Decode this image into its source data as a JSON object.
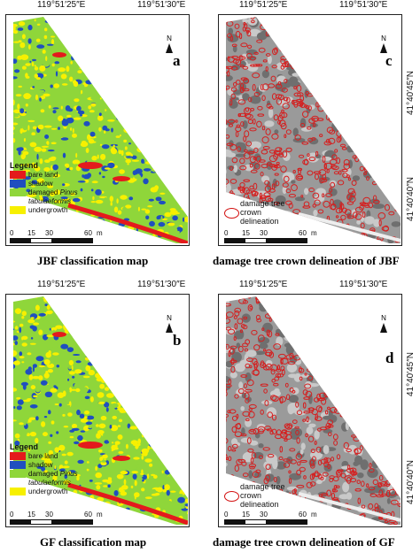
{
  "coords": {
    "top_a": "119°51′25″E",
    "top_b": "119°51′30″E",
    "right_1": "41°40′45″N",
    "right_2": "41°40′40″N"
  },
  "panels": [
    {
      "id": "a",
      "label": "a",
      "caption": "JBF classification map",
      "type": "classification"
    },
    {
      "id": "c",
      "label": "c",
      "caption": "damage tree crown delineation of JBF",
      "type": "delineation"
    },
    {
      "id": "b",
      "label": "b",
      "caption": "GF classification map",
      "type": "classification"
    },
    {
      "id": "d",
      "label": "d",
      "caption": "damage tree crown delineation of GF",
      "type": "delineation"
    }
  ],
  "north": "N",
  "legend": {
    "title": "Legend",
    "items": [
      {
        "label": "bare land",
        "color": "#e41a1c"
      },
      {
        "label": "shadow",
        "color": "#1f4fbf"
      },
      {
        "label_a": "damaged ",
        "label_b": "Pinus",
        "label_c": "tabulaeformis",
        "color": "#8fd63a"
      },
      {
        "label": "undergrowth",
        "color": "#f7f000"
      }
    ]
  },
  "scale": {
    "ticks": [
      "0",
      "15",
      "30",
      "60"
    ],
    "unit": "m"
  },
  "delineation": {
    "line1": "damage tree",
    "line2": "crown",
    "line3": "delineation"
  },
  "colors": {
    "bare": "#e41a1c",
    "shadow": "#1f4fbf",
    "damaged": "#8fd63a",
    "under": "#f7f000",
    "stand": "#9a9a9a",
    "crown": "#d42020"
  }
}
